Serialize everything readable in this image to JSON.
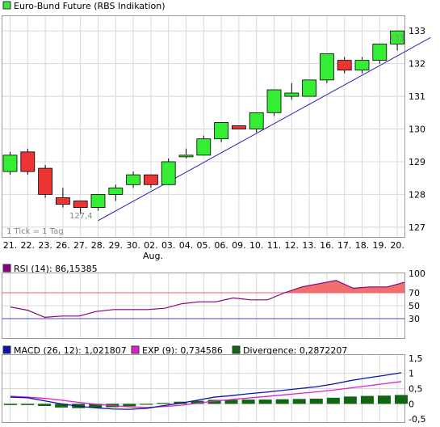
{
  "chart_data": [
    {
      "type": "candlestick",
      "title": "Euro-Bund Future (RBS Indikation)",
      "legend_color": "#3ee63e",
      "up_color": "#33ee33",
      "down_color": "#ee3333",
      "trendline_color": "#2222bb",
      "annotation_note": "1 Tick = 1 Tag",
      "high_label": "133",
      "low_label": "127,4",
      "month_label": "Aug.",
      "categories": [
        "21.",
        "22.",
        "23.",
        "26.",
        "27.",
        "28.",
        "29.",
        "30.",
        "02.",
        "03.",
        "04.",
        "05.",
        "06.",
        "09.",
        "10.",
        "11.",
        "12.",
        "13.",
        "16.",
        "17.",
        "18.",
        "19.",
        "20."
      ],
      "ohlc": [
        {
          "o": 128.7,
          "h": 129.3,
          "l": 128.6,
          "c": 129.2
        },
        {
          "o": 129.3,
          "h": 129.4,
          "l": 128.6,
          "c": 128.7
        },
        {
          "o": 128.8,
          "h": 128.9,
          "l": 127.9,
          "c": 128.0
        },
        {
          "o": 127.9,
          "h": 128.2,
          "l": 127.6,
          "c": 127.7
        },
        {
          "o": 127.8,
          "h": 127.8,
          "l": 127.4,
          "c": 127.6
        },
        {
          "o": 127.6,
          "h": 128.0,
          "l": 127.5,
          "c": 128.0
        },
        {
          "o": 128.0,
          "h": 128.3,
          "l": 127.8,
          "c": 128.2
        },
        {
          "o": 128.3,
          "h": 128.7,
          "l": 128.2,
          "c": 128.6
        },
        {
          "o": 128.6,
          "h": 128.6,
          "l": 128.2,
          "c": 128.3
        },
        {
          "o": 128.3,
          "h": 129.1,
          "l": 128.3,
          "c": 129.0
        },
        {
          "o": 129.2,
          "h": 129.4,
          "l": 129.1,
          "c": 129.2
        },
        {
          "o": 129.2,
          "h": 129.8,
          "l": 129.2,
          "c": 129.7
        },
        {
          "o": 129.7,
          "h": 130.2,
          "l": 129.6,
          "c": 130.2
        },
        {
          "o": 130.1,
          "h": 130.1,
          "l": 130.0,
          "c": 130.0
        },
        {
          "o": 130.0,
          "h": 130.5,
          "l": 129.9,
          "c": 130.5
        },
        {
          "o": 130.5,
          "h": 131.2,
          "l": 130.4,
          "c": 131.2
        },
        {
          "o": 131.0,
          "h": 131.4,
          "l": 130.9,
          "c": 131.1
        },
        {
          "o": 131.0,
          "h": 131.5,
          "l": 131.0,
          "c": 131.5
        },
        {
          "o": 131.5,
          "h": 132.3,
          "l": 131.4,
          "c": 132.3
        },
        {
          "o": 132.1,
          "h": 132.2,
          "l": 131.7,
          "c": 131.8
        },
        {
          "o": 131.8,
          "h": 132.2,
          "l": 131.7,
          "c": 132.1
        },
        {
          "o": 132.1,
          "h": 132.6,
          "l": 132.0,
          "c": 132.6
        },
        {
          "o": 132.6,
          "h": 133.0,
          "l": 132.4,
          "c": 133.0
        }
      ],
      "trendline": {
        "from": {
          "index": 5,
          "value": 127.2
        },
        "to": {
          "index": 23.9,
          "value": 132.8
        }
      },
      "ylim": [
        126.7,
        133.45
      ],
      "yticks": [
        127,
        128,
        129,
        130,
        131,
        132,
        133
      ]
    },
    {
      "type": "area",
      "label": "RSI (14): 86,15385",
      "legend_color": "#8b0080",
      "line_color": "#8b0080",
      "fill_color": "#f07070",
      "upper_level": 70,
      "lower_level": 30,
      "upper_color": "#ee6666",
      "lower_color": "#4444cc",
      "ylim": [
        0,
        100
      ],
      "yticks": [
        30,
        50,
        70,
        100
      ],
      "values": [
        48,
        43,
        32,
        34,
        34,
        41,
        44,
        44,
        44,
        46,
        53,
        56,
        56,
        62,
        59,
        59,
        70,
        79,
        84,
        89,
        77,
        79,
        79,
        86.15
      ]
    },
    {
      "type": "bar",
      "legend": [
        {
          "label": "MACD (26, 12): 1,021807",
          "color": "#1010aa"
        },
        {
          "label": "EXP (9): 0,734586",
          "color": "#dd22cc"
        },
        {
          "label": "Divergence: 0,2872207",
          "color": "#116611"
        }
      ],
      "macd": [
        0.22,
        0.2,
        0.1,
        0.0,
        -0.08,
        -0.13,
        -0.17,
        -0.18,
        -0.15,
        -0.06,
        0.02,
        0.12,
        0.22,
        0.27,
        0.33,
        0.38,
        0.44,
        0.5,
        0.56,
        0.65,
        0.76,
        0.85,
        0.93,
        1.02
      ],
      "signal": [
        0.25,
        0.22,
        0.18,
        0.12,
        0.05,
        -0.01,
        -0.06,
        -0.1,
        -0.12,
        -0.09,
        -0.05,
        0.02,
        0.09,
        0.14,
        0.19,
        0.24,
        0.29,
        0.34,
        0.39,
        0.45,
        0.52,
        0.59,
        0.66,
        0.73
      ],
      "divergence": [
        -0.04,
        -0.04,
        -0.07,
        -0.12,
        -0.14,
        -0.13,
        -0.11,
        -0.08,
        -0.03,
        0.03,
        0.07,
        0.1,
        0.13,
        0.13,
        0.14,
        0.14,
        0.15,
        0.16,
        0.17,
        0.2,
        0.24,
        0.26,
        0.27,
        0.29
      ],
      "ylim": [
        -0.6,
        1.6
      ],
      "yticks": [
        -0.5,
        0,
        0.5,
        1,
        1.5
      ],
      "ytick_labels": [
        "-0,5",
        "0",
        "0,5",
        "1",
        "1,5"
      ]
    }
  ]
}
